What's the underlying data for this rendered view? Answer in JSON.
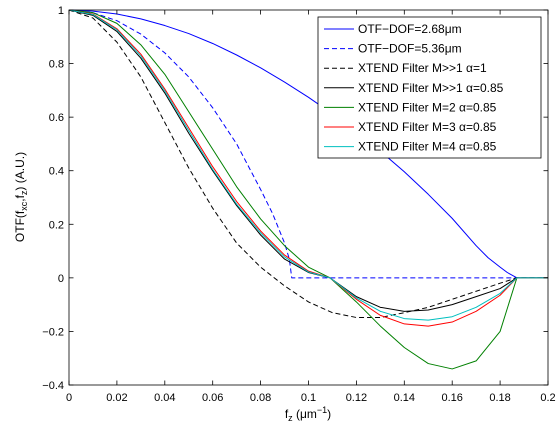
{
  "chart_data": {
    "type": "line",
    "title": "",
    "xlabel": "f_z (µm⁻¹)",
    "ylabel": "OTF(f_xc, f_z) (A.U.)",
    "xlabel_parts": {
      "main": "f",
      "sub": "z",
      "unit_open": " (μm",
      "unit_sup": "−1",
      "unit_close": ")"
    },
    "ylabel_parts": {
      "pre": "OTF(f",
      "sub1": "xc",
      "mid": ",f",
      "sub2": "z",
      "post": ") (A.U.)"
    },
    "xlim": [
      0,
      0.2
    ],
    "ylim": [
      -0.4,
      1
    ],
    "xticks": [
      "0",
      "0.02",
      "0.04",
      "0.06",
      "0.08",
      "0.1",
      "0.12",
      "0.14",
      "0.16",
      "0.18",
      "0.2"
    ],
    "yticks": [
      "−0.4",
      "−0.2",
      "0",
      "0.2",
      "0.4",
      "0.6",
      "0.8",
      "1"
    ],
    "grid": false,
    "legend_position": "top-right",
    "series": [
      {
        "name": "OTF−DOF=2.68μm",
        "color": "#0000ff",
        "dash": "solid",
        "x": [
          0,
          0.01,
          0.02,
          0.03,
          0.04,
          0.05,
          0.06,
          0.07,
          0.08,
          0.09,
          0.1,
          0.11,
          0.12,
          0.13,
          0.14,
          0.15,
          0.16,
          0.17,
          0.175,
          0.18,
          0.183,
          0.187,
          0.2
        ],
        "y": [
          1.0,
          0.996,
          0.985,
          0.967,
          0.942,
          0.912,
          0.875,
          0.832,
          0.784,
          0.731,
          0.674,
          0.612,
          0.545,
          0.473,
          0.396,
          0.312,
          0.222,
          0.12,
          0.075,
          0.04,
          0.02,
          0.0,
          0.0
        ]
      },
      {
        "name": "OTF−DOF=5.36μm",
        "color": "#0000ff",
        "dash": "dashed",
        "x": [
          0,
          0.01,
          0.02,
          0.03,
          0.04,
          0.05,
          0.06,
          0.07,
          0.08,
          0.085,
          0.09,
          0.092,
          0.093,
          0.1,
          0.2
        ],
        "y": [
          1.0,
          0.99,
          0.96,
          0.91,
          0.84,
          0.75,
          0.635,
          0.5,
          0.33,
          0.24,
          0.13,
          0.07,
          0.0,
          0.0,
          0.0
        ]
      },
      {
        "name": "XTEND Filter M>>1 α=1",
        "color": "#000000",
        "dash": "dashed",
        "x": [
          0,
          0.01,
          0.02,
          0.03,
          0.04,
          0.05,
          0.06,
          0.07,
          0.08,
          0.09,
          0.1,
          0.11,
          0.12,
          0.13,
          0.14,
          0.15,
          0.16,
          0.17,
          0.18,
          0.187,
          0.2
        ],
        "y": [
          1.0,
          0.97,
          0.88,
          0.75,
          0.58,
          0.41,
          0.26,
          0.13,
          0.04,
          -0.03,
          -0.09,
          -0.13,
          -0.148,
          -0.148,
          -0.13,
          -0.11,
          -0.08,
          -0.05,
          -0.02,
          0.0,
          0.0
        ]
      },
      {
        "name": "XTEND Filter M>>1 α=0.85",
        "color": "#000000",
        "dash": "solid",
        "x": [
          0,
          0.01,
          0.02,
          0.03,
          0.04,
          0.05,
          0.06,
          0.07,
          0.08,
          0.09,
          0.1,
          0.109,
          0.12,
          0.13,
          0.14,
          0.15,
          0.16,
          0.17,
          0.18,
          0.187,
          0.2
        ],
        "y": [
          1.0,
          0.98,
          0.92,
          0.82,
          0.69,
          0.54,
          0.4,
          0.27,
          0.16,
          0.07,
          0.02,
          0.0,
          -0.07,
          -0.11,
          -0.125,
          -0.12,
          -0.1,
          -0.07,
          -0.04,
          0.0,
          0.0
        ]
      },
      {
        "name": "XTEND Filter M=2 α=0.85",
        "color": "#008000",
        "dash": "solid",
        "x": [
          0,
          0.01,
          0.02,
          0.03,
          0.04,
          0.05,
          0.06,
          0.07,
          0.08,
          0.09,
          0.1,
          0.109,
          0.12,
          0.13,
          0.14,
          0.15,
          0.16,
          0.17,
          0.18,
          0.187,
          0.2
        ],
        "y": [
          1.0,
          0.99,
          0.95,
          0.87,
          0.76,
          0.62,
          0.48,
          0.34,
          0.22,
          0.12,
          0.04,
          0.0,
          -0.09,
          -0.18,
          -0.26,
          -0.32,
          -0.34,
          -0.31,
          -0.2,
          0.0,
          0.0
        ]
      },
      {
        "name": "XTEND Filter M=3 α=0.85",
        "color": "#ff0000",
        "dash": "solid",
        "x": [
          0,
          0.01,
          0.02,
          0.03,
          0.04,
          0.05,
          0.06,
          0.07,
          0.08,
          0.09,
          0.1,
          0.109,
          0.12,
          0.13,
          0.14,
          0.15,
          0.16,
          0.17,
          0.18,
          0.187,
          0.2
        ],
        "y": [
          1.0,
          0.985,
          0.93,
          0.835,
          0.705,
          0.56,
          0.415,
          0.285,
          0.175,
          0.085,
          0.025,
          0.0,
          -0.08,
          -0.14,
          -0.172,
          -0.18,
          -0.165,
          -0.125,
          -0.065,
          0.0,
          0.0
        ]
      },
      {
        "name": "XTEND Filter M=4 α=0.85",
        "color": "#00bfbf",
        "dash": "solid",
        "x": [
          0,
          0.01,
          0.02,
          0.03,
          0.04,
          0.05,
          0.06,
          0.07,
          0.08,
          0.09,
          0.1,
          0.109,
          0.12,
          0.13,
          0.14,
          0.15,
          0.16,
          0.17,
          0.18,
          0.187,
          0.2
        ],
        "y": [
          1.0,
          0.983,
          0.926,
          0.828,
          0.698,
          0.55,
          0.405,
          0.275,
          0.168,
          0.078,
          0.022,
          0.0,
          -0.075,
          -0.125,
          -0.152,
          -0.158,
          -0.145,
          -0.11,
          -0.058,
          0.0,
          0.0
        ]
      }
    ]
  }
}
